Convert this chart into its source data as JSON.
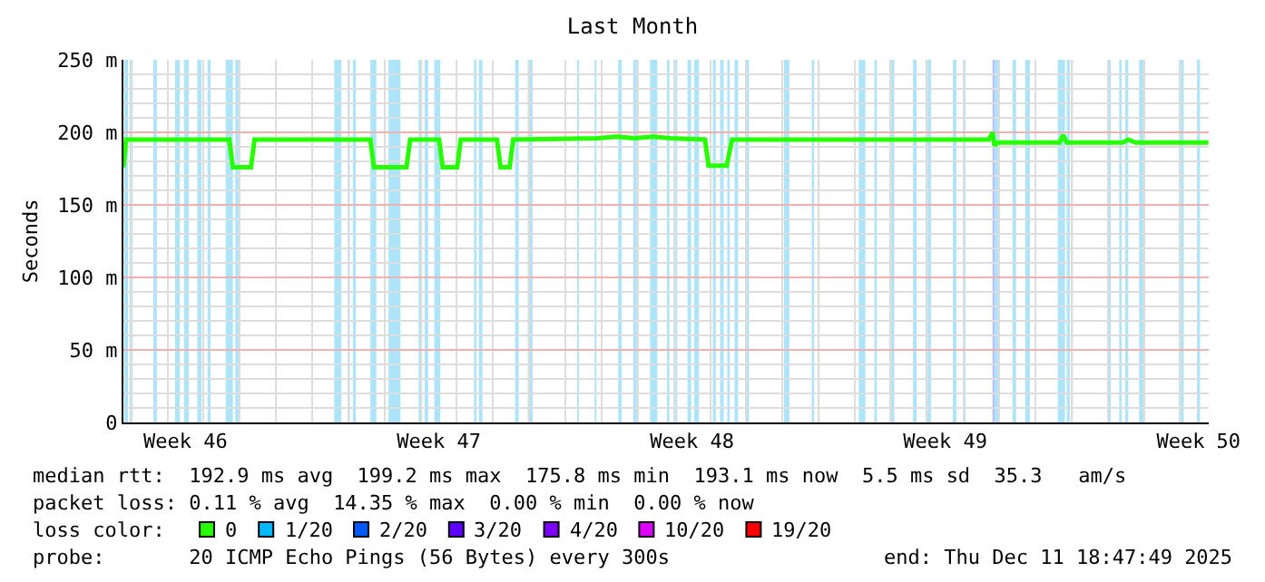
{
  "chart_data": {
    "type": "line",
    "title": "Last Month",
    "ylabel": "Seconds",
    "x": [
      "2025-11-11T18:47",
      "2025-11-11T20:35",
      "2025-11-14T17:00",
      "2025-11-14T19:24",
      "2025-11-15T07:23",
      "2025-11-15T09:47",
      "2025-11-18T14:35",
      "2025-11-18T16:59",
      "2025-11-19T14:35",
      "2025-11-19T16:59",
      "2025-11-20T12:11",
      "2025-11-20T14:35",
      "2025-11-21T00:11",
      "2025-11-21T02:35",
      "2025-11-22T02:35",
      "2025-11-22T04:59",
      "2025-11-22T10:59",
      "2025-11-22T13:23",
      "2025-11-24T21:47",
      "2025-11-25T09:47",
      "2025-11-25T21:47",
      "2025-11-26T09:47",
      "2025-11-26T21:47",
      "2025-11-27T20:35",
      "2025-11-27T22:59",
      "2025-11-28T10:59",
      "2025-11-28T14:35",
      "2025-12-05T16:59",
      "2025-12-05T19:23",
      "2025-12-05T20:35",
      "2025-12-05T22:59",
      "2025-12-07T15:47",
      "2025-12-07T18:11",
      "2025-12-07T20:35",
      "2025-12-09T09:47",
      "2025-12-09T13:23",
      "2025-12-09T18:11",
      "2025-12-11T18:35"
    ],
    "series": [
      {
        "name": "0",
        "color": "#26ff00",
        "values": [
          176,
          195,
          195,
          176,
          176,
          195,
          195,
          176,
          176,
          195,
          195,
          176,
          176,
          195,
          195,
          176,
          176,
          195,
          196,
          197,
          196,
          197,
          196,
          195,
          177,
          177,
          195,
          195,
          200,
          191,
          193,
          193,
          198,
          193,
          193,
          195,
          193,
          193
        ]
      },
      {
        "name": "1/20",
        "color": "#00b8ff",
        "values": [
          null,
          null,
          null,
          null,
          null,
          null,
          null,
          null,
          null,
          null,
          null,
          null,
          null,
          null,
          null,
          null,
          null,
          null,
          null,
          null,
          null,
          null,
          null,
          null,
          null,
          null,
          null,
          null,
          null,
          null,
          null,
          null,
          null,
          null,
          null,
          null,
          null,
          null
        ]
      },
      {
        "name": "2/20",
        "color": "#0059ff",
        "values": [
          null,
          null,
          null,
          null,
          null,
          null,
          null,
          null,
          null,
          null,
          null,
          null,
          null,
          null,
          null,
          null,
          null,
          null,
          null,
          null,
          null,
          null,
          null,
          null,
          null,
          null,
          null,
          null,
          null,
          null,
          null,
          null,
          null,
          null,
          null,
          null,
          null,
          null
        ]
      },
      {
        "name": "3/20",
        "color": "#5e00ff",
        "values": [
          null,
          null,
          null,
          null,
          null,
          null,
          null,
          null,
          null,
          null,
          null,
          null,
          null,
          null,
          null,
          null,
          null,
          null,
          null,
          null,
          null,
          null,
          null,
          null,
          null,
          null,
          null,
          null,
          null,
          null,
          null,
          null,
          null,
          null,
          null,
          null,
          null,
          null
        ]
      },
      {
        "name": "4/20",
        "color": "#7e00ff",
        "values": [
          null,
          null,
          null,
          null,
          null,
          null,
          null,
          null,
          null,
          null,
          null,
          null,
          null,
          null,
          null,
          null,
          null,
          null,
          null,
          null,
          null,
          null,
          null,
          null,
          null,
          null,
          null,
          null,
          null,
          null,
          null,
          null,
          null,
          null,
          null,
          null,
          null,
          null
        ]
      },
      {
        "name": "10/20",
        "color": "#dd00ff",
        "values": [
          null,
          null,
          null,
          null,
          null,
          null,
          null,
          null,
          null,
          null,
          null,
          null,
          null,
          null,
          null,
          null,
          null,
          null,
          null,
          null,
          null,
          null,
          null,
          null,
          null,
          null,
          null,
          null,
          null,
          null,
          null,
          null,
          null,
          null,
          null,
          null,
          null,
          null
        ]
      },
      {
        "name": "19/20",
        "color": "#ff0000",
        "values": [
          null,
          null,
          null,
          null,
          null,
          null,
          null,
          null,
          null,
          null,
          null,
          null,
          null,
          null,
          null,
          null,
          null,
          null,
          null,
          null,
          null,
          null,
          null,
          null,
          null,
          null,
          null,
          null,
          null,
          null,
          null,
          null,
          null,
          null,
          null,
          null,
          null,
          null
        ]
      }
    ],
    "legend_title": "loss color:",
    "legend": "bottom",
    "marker": "none",
    "line_style": "solid",
    "grid": true,
    "xlim": [
      "2025-11-11T18:47",
      "2025-12-11T18:47"
    ],
    "xticks": [
      {
        "value": "2025-11-13T12:00",
        "label": "Week 46"
      },
      {
        "value": "2025-11-17",
        "label": null
      },
      {
        "value": "2025-11-20T12:00",
        "label": "Week 47"
      },
      {
        "value": "2025-11-24",
        "label": null
      },
      {
        "value": "2025-11-27T12:00",
        "label": "Week 48"
      },
      {
        "value": "2025-12-01",
        "label": null
      },
      {
        "value": "2025-12-04T12:00",
        "label": "Week 49"
      },
      {
        "value": "2025-12-08",
        "label": null
      },
      {
        "value": "2025-12-11T12:00",
        "label": "Week 50"
      }
    ],
    "ylim": [
      0,
      250
    ],
    "yticks": [
      0,
      {
        "value": 50,
        "label": "50 m"
      },
      {
        "value": 100,
        "label": "100 m"
      },
      {
        "value": 150,
        "label": "150 m"
      },
      {
        "value": 200,
        "label": "200 m"
      },
      {
        "value": 250,
        "label": "250 m"
      }
    ],
    "bands": [
      {
        "axis": "x",
        "from": "2025-11-11T19:24",
        "to": "2025-11-11T21:48",
        "color": "#aee4f7"
      },
      {
        "axis": "x",
        "from": "2025-11-11T23:00",
        "to": "2025-11-12T01:00",
        "color": "#aee4f7"
      },
      {
        "axis": "x",
        "from": "2025-11-12T14:36",
        "to": "2025-11-12T17:00",
        "color": "#aee4f7"
      },
      {
        "axis": "x",
        "from": "2025-11-13T05:00",
        "to": "2025-11-13T08:12",
        "color": "#aee4f7"
      },
      {
        "axis": "x",
        "from": "2025-11-13T11:00",
        "to": "2025-11-13T14:12",
        "color": "#aee4f7"
      },
      {
        "axis": "x",
        "from": "2025-11-13T19:48",
        "to": "2025-11-13T22:36",
        "color": "#aee4f7"
      },
      {
        "axis": "x",
        "from": "2025-11-14T02:36",
        "to": "2025-11-14T04:36",
        "color": "#aee4f7"
      },
      {
        "axis": "x",
        "from": "2025-11-14T14:36",
        "to": "2025-11-14T19:24",
        "color": "#aee4f7"
      },
      {
        "axis": "x",
        "from": "2025-11-14T21:00",
        "to": "2025-11-14T23:24",
        "color": "#aee4f7"
      },
      {
        "axis": "x",
        "from": "2025-11-17T14:36",
        "to": "2025-11-17T19:24",
        "color": "#aee4f7"
      },
      {
        "axis": "x",
        "from": "2025-11-17T23:48",
        "to": "2025-11-18T01:00",
        "color": "#aee4f7"
      },
      {
        "axis": "x",
        "from": "2025-11-18T03:00",
        "to": "2025-11-18T05:00",
        "color": "#aee4f7"
      },
      {
        "axis": "x",
        "from": "2025-11-18T14:36",
        "to": "2025-11-18T18:36",
        "color": "#aee4f7"
      },
      {
        "axis": "x",
        "from": "2025-11-19T02:36",
        "to": "2025-11-19T10:36",
        "color": "#aee4f7"
      },
      {
        "axis": "x",
        "from": "2025-11-19T22:36",
        "to": "2025-11-20T01:00",
        "color": "#aee4f7"
      },
      {
        "axis": "x",
        "from": "2025-11-20T02:36",
        "to": "2025-11-20T05:00",
        "color": "#aee4f7"
      },
      {
        "axis": "x",
        "from": "2025-11-20T09:00",
        "to": "2025-11-20T13:00",
        "color": "#aee4f7"
      },
      {
        "axis": "x",
        "from": "2025-11-21T11:24",
        "to": "2025-11-21T13:00",
        "color": "#aee4f7"
      },
      {
        "axis": "x",
        "from": "2025-11-21T14:36",
        "to": "2025-11-21T17:00",
        "color": "#aee4f7"
      },
      {
        "axis": "x",
        "from": "2025-11-22T14:36",
        "to": "2025-11-22T17:00",
        "color": "#aee4f7"
      },
      {
        "axis": "x",
        "from": "2025-11-22T23:00",
        "to": "2025-11-23T02:12",
        "color": "#aee4f7"
      },
      {
        "axis": "x",
        "from": "2025-11-24T07:48",
        "to": "2025-11-24T09:00",
        "color": "#aee4f7"
      },
      {
        "axis": "x",
        "from": "2025-11-24T19:24",
        "to": "2025-11-24T20:36",
        "color": "#aee4f7"
      },
      {
        "axis": "x",
        "from": "2025-11-25T11:00",
        "to": "2025-11-25T13:24",
        "color": "#aee4f7"
      },
      {
        "axis": "x",
        "from": "2025-11-25T21:00",
        "to": "2025-11-25T23:24",
        "color": "#aee4f7"
      },
      {
        "axis": "x",
        "from": "2025-11-26T08:12",
        "to": "2025-11-26T13:00",
        "color": "#aee4f7"
      },
      {
        "axis": "x",
        "from": "2025-11-26T19:24",
        "to": "2025-11-26T21:00",
        "color": "#aee4f7"
      },
      {
        "axis": "x",
        "from": "2025-11-27T01:00",
        "to": "2025-11-27T02:12",
        "color": "#aee4f7"
      },
      {
        "axis": "x",
        "from": "2025-11-27T09:00",
        "to": "2025-11-27T11:24",
        "color": "#aee4f7"
      },
      {
        "axis": "x",
        "from": "2025-11-27T13:24",
        "to": "2025-11-27T16:36",
        "color": "#aee4f7"
      },
      {
        "axis": "x",
        "from": "2025-11-28T01:48",
        "to": "2025-11-28T03:48",
        "color": "#aee4f7"
      },
      {
        "axis": "x",
        "from": "2025-11-28T06:36",
        "to": "2025-11-28T09:00",
        "color": "#aee4f7"
      },
      {
        "axis": "x",
        "from": "2025-11-28T11:24",
        "to": "2025-11-28T13:00",
        "color": "#aee4f7"
      },
      {
        "axis": "x",
        "from": "2025-11-28T16:12",
        "to": "2025-11-28T18:36",
        "color": "#aee4f7"
      },
      {
        "axis": "x",
        "from": "2025-11-29T00:12",
        "to": "2025-11-29T01:48",
        "color": "#aee4f7"
      },
      {
        "axis": "x",
        "from": "2025-11-30T01:00",
        "to": "2025-11-30T04:36",
        "color": "#aee4f7"
      },
      {
        "axis": "x",
        "from": "2025-11-30T19:24",
        "to": "2025-11-30T21:00",
        "color": "#aee4f7"
      },
      {
        "axis": "x",
        "from": "2025-12-02T02:36",
        "to": "2025-12-02T07:00",
        "color": "#aee4f7"
      },
      {
        "axis": "x",
        "from": "2025-12-02T13:00",
        "to": "2025-12-02T14:36",
        "color": "#aee4f7"
      },
      {
        "axis": "x",
        "from": "2025-12-02T23:00",
        "to": "2025-12-03T02:12",
        "color": "#aee4f7"
      },
      {
        "axis": "x",
        "from": "2025-12-03T14:36",
        "to": "2025-12-03T17:00",
        "color": "#aee4f7"
      },
      {
        "axis": "x",
        "from": "2025-12-03T23:00",
        "to": "2025-12-04T02:36",
        "color": "#aee4f7"
      },
      {
        "axis": "x",
        "from": "2025-12-04T17:00",
        "to": "2025-12-04T19:24",
        "color": "#aee4f7"
      },
      {
        "axis": "x",
        "from": "2025-12-04T23:48",
        "to": "2025-12-05T01:24",
        "color": "#aee4f7"
      },
      {
        "axis": "x",
        "from": "2025-12-05T19:24",
        "to": "2025-12-05T20:36",
        "color": "#b9b4ff"
      },
      {
        "axis": "x",
        "from": "2025-12-05T20:36",
        "to": "2025-12-06T00:12",
        "color": "#aee4f7"
      },
      {
        "axis": "x",
        "from": "2025-12-06T08:36",
        "to": "2025-12-06T11:00",
        "color": "#aee4f7"
      },
      {
        "axis": "x",
        "from": "2025-12-06T17:00",
        "to": "2025-12-06T20:12",
        "color": "#aee4f7"
      },
      {
        "axis": "x",
        "from": "2025-12-07T14:36",
        "to": "2025-12-07T19:24",
        "color": "#aee4f7"
      },
      {
        "axis": "x",
        "from": "2025-12-07T20:36",
        "to": "2025-12-07T22:36",
        "color": "#aee4f7"
      },
      {
        "axis": "x",
        "from": "2025-12-09T00:12",
        "to": "2025-12-09T01:48",
        "color": "#aee4f7"
      },
      {
        "axis": "x",
        "from": "2025-12-09T07:24",
        "to": "2025-12-09T09:00",
        "color": "#aee4f7"
      },
      {
        "axis": "x",
        "from": "2025-12-09T11:24",
        "to": "2025-12-09T13:24",
        "color": "#aee4f7"
      },
      {
        "axis": "x",
        "from": "2025-12-09T20:36",
        "to": "2025-12-09T23:24",
        "color": "#aee4f7"
      },
      {
        "axis": "x",
        "from": "2025-12-10T23:00",
        "to": "2025-12-11T02:12",
        "color": "#aee4f7"
      },
      {
        "axis": "x",
        "from": "2025-12-11T11:00",
        "to": "2025-12-11T13:00",
        "color": "#aee4f7"
      }
    ],
    "annotations": [
      "median rtt:  192.9 ms avg  199.2 ms max  175.8 ms min  193.1 ms now  5.5 ms sd  35.3   am/s",
      "packet loss: 0.11 % avg  14.35 % max  0.00 % min  0.00 % now",
      "probe:       20 ICMP Echo Pings (56 Bytes) every 300s",
      "end: Thu Dec 11 18:47:49 2025"
    ]
  }
}
